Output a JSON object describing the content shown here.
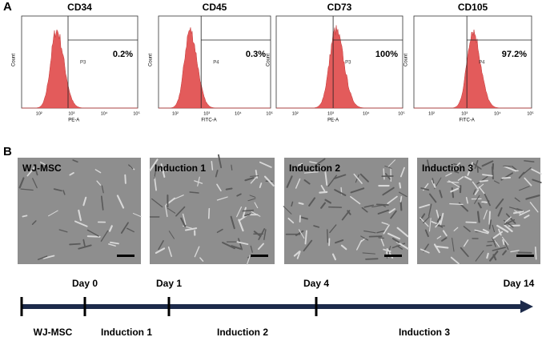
{
  "panel_a": {
    "label": "A",
    "plots": [
      {
        "title": "CD34",
        "percent": "0.2%",
        "gate": "P3",
        "x_label": "PE-A",
        "y_label": "Count"
      },
      {
        "title": "CD45",
        "percent": "0.3%",
        "gate": "P4",
        "x_label": "FITC-A",
        "y_label": "Count"
      },
      {
        "title": "CD73",
        "percent": "100%",
        "gate": "P3",
        "x_label": "PE-A",
        "y_label": "Count"
      },
      {
        "title": "CD105",
        "percent": "97.2%",
        "gate": "P4",
        "x_label": "FITC-A",
        "y_label": "Count"
      }
    ],
    "x_ticks": [
      "10²",
      "10³",
      "10⁴",
      "10⁵"
    ]
  },
  "panel_b": {
    "label": "B",
    "images": [
      "WJ-MSC",
      "Induction 1",
      "Induction 2",
      "Induction 3"
    ]
  },
  "timeline": {
    "days": [
      "Day 0",
      "Day 1",
      "Day 4",
      "Day 14"
    ],
    "stages": [
      "WJ-MSC",
      "Induction 1",
      "Induction 2",
      "Induction 3"
    ]
  }
}
